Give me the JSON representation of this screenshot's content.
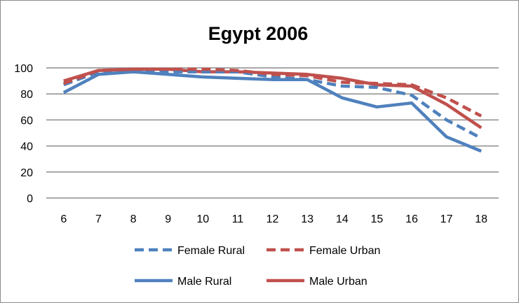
{
  "chart_data": {
    "type": "line",
    "title": "Egypt 2006",
    "xlabel": "",
    "ylabel": "",
    "x": [
      6,
      7,
      8,
      9,
      10,
      11,
      12,
      13,
      14,
      15,
      16,
      17,
      18
    ],
    "ylim": [
      0,
      100
    ],
    "yticks": [
      0,
      20,
      40,
      60,
      80,
      100
    ],
    "grid": true,
    "legend_position": "bottom",
    "series": [
      {
        "name": "Female Rural",
        "color": "#4f81bd",
        "dash": true,
        "values": [
          87,
          97,
          98,
          97,
          97,
          97,
          93,
          91,
          86,
          85,
          79,
          60,
          46
        ]
      },
      {
        "name": "Female Urban",
        "color": "#c0504d",
        "dash": true,
        "values": [
          88,
          98,
          99,
          99,
          99,
          98,
          95,
          94,
          89,
          88,
          87,
          77,
          63
        ]
      },
      {
        "name": "Male Rural",
        "color": "#4f81bd",
        "dash": false,
        "values": [
          81,
          95,
          97,
          95,
          93,
          92,
          91,
          91,
          77,
          70,
          73,
          47,
          36
        ]
      },
      {
        "name": "Male Urban",
        "color": "#c0504d",
        "dash": false,
        "values": [
          90,
          98,
          99,
          99,
          97,
          97,
          96,
          95,
          92,
          87,
          86,
          72,
          54
        ]
      }
    ]
  }
}
